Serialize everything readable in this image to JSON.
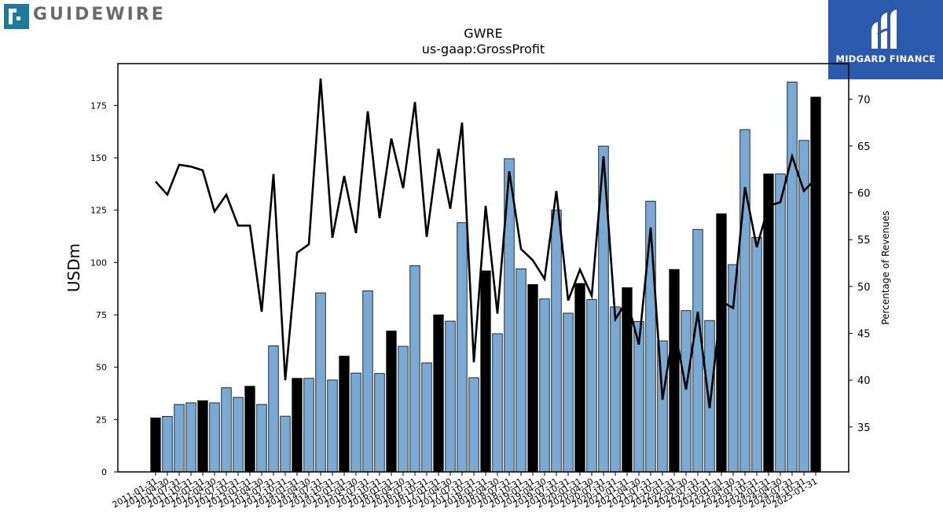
{
  "branding": {
    "left_logo_text": "GUIDEWIRE",
    "right_logo_text": "MIDGARD FINANCE",
    "colors": {
      "guidewire_teal": "#1f7a99",
      "midgard_blue": "#2b5aad"
    }
  },
  "chart_data": {
    "type": "bar",
    "title": "GWRE",
    "subtitle": "us-gaap:GrossProfit",
    "ylabel": "USDm",
    "y2label": "Percentage of Revenues",
    "ylim": [
      0,
      195
    ],
    "y2lim": [
      30.2,
      73.8
    ],
    "yticks": [
      0,
      25,
      50,
      75,
      100,
      125,
      150,
      175
    ],
    "y2ticks": [
      35,
      40,
      45,
      50,
      55,
      60,
      65,
      70
    ],
    "grid": false,
    "colors": {
      "bar_default": "#7aaad3",
      "bar_highlight": "#000000",
      "line": "#000000"
    },
    "categories": [
      "2011-01-31",
      "2011-04-30",
      "2011-07-31",
      "2011-10-31",
      "2012-01-31",
      "2012-04-30",
      "2012-07-31",
      "2012-10-31",
      "2013-01-31",
      "2013-04-30",
      "2013-07-31",
      "2013-10-31",
      "2014-01-31",
      "2014-04-30",
      "2014-07-31",
      "2014-10-31",
      "2015-01-31",
      "2015-04-30",
      "2015-07-31",
      "2015-10-31",
      "2016-01-31",
      "2016-04-30",
      "2016-07-31",
      "2016-10-31",
      "2017-01-31",
      "2017-04-30",
      "2017-07-31",
      "2017-10-31",
      "2018-01-31",
      "2018-04-30",
      "2018-07-31",
      "2018-10-31",
      "2019-01-31",
      "2019-04-30",
      "2019-07-31",
      "2019-10-31",
      "2020-01-31",
      "2020-04-30",
      "2020-07-31",
      "2020-10-31",
      "2021-01-31",
      "2021-04-30",
      "2021-07-31",
      "2021-10-31",
      "2022-01-31",
      "2022-04-30",
      "2022-07-31",
      "2022-10-31",
      "2023-01-31",
      "2023-04-30",
      "2023-07-31",
      "2023-10-31",
      "2024-01-31",
      "2024-04-30",
      "2024-07-31",
      "2024-10-31",
      "2025-01-31"
    ],
    "series": [
      {
        "kind": "bar",
        "axis": "left",
        "values": [
          25.8,
          26.5,
          32.2,
          33.0,
          34.0,
          33.0,
          40.2,
          35.6,
          40.9,
          32.2,
          60.2,
          26.6,
          44.7,
          44.7,
          85.5,
          43.9,
          55.3,
          47.2,
          86.5,
          47.0,
          67.3,
          60.0,
          98.5,
          52.1,
          75.0,
          72.0,
          119.0,
          45.0,
          96.0,
          66.0,
          149.6,
          97.0,
          89.5,
          82.6,
          125.0,
          75.8,
          90.0,
          82.3,
          155.6,
          78.8,
          88.0,
          71.8,
          129.3,
          62.6,
          96.7,
          77.0,
          115.8,
          72.3,
          123.3,
          99.0,
          163.5,
          112.0,
          142.3,
          142.3,
          186.2,
          158.3,
          179.0
        ],
        "highlight": [
          true,
          false,
          false,
          false,
          true,
          false,
          false,
          false,
          true,
          false,
          false,
          false,
          true,
          false,
          false,
          false,
          true,
          false,
          false,
          false,
          true,
          false,
          false,
          false,
          true,
          false,
          false,
          false,
          true,
          false,
          false,
          false,
          true,
          false,
          false,
          false,
          true,
          false,
          false,
          false,
          true,
          false,
          false,
          false,
          true,
          false,
          false,
          false,
          true,
          false,
          false,
          false,
          true,
          false,
          false,
          false,
          true
        ]
      },
      {
        "kind": "line",
        "axis": "right",
        "values": [
          61.2,
          59.8,
          63.0,
          62.8,
          62.4,
          58.0,
          59.8,
          56.5,
          56.5,
          47.3,
          62.0,
          40.0,
          53.6,
          54.5,
          72.2,
          55.2,
          61.8,
          55.7,
          68.7,
          57.3,
          65.8,
          60.5,
          69.7,
          55.3,
          64.7,
          58.3,
          67.5,
          41.9,
          58.6,
          47.1,
          62.3,
          54.0,
          52.8,
          50.8,
          60.2,
          48.5,
          51.8,
          49.0,
          63.9,
          46.5,
          48.5,
          43.8,
          56.3,
          37.9,
          45.8,
          39.0,
          47.3,
          37.0,
          48.4,
          47.7,
          60.6,
          54.2,
          58.6,
          59.0,
          63.9,
          60.2,
          61.5
        ]
      }
    ]
  }
}
